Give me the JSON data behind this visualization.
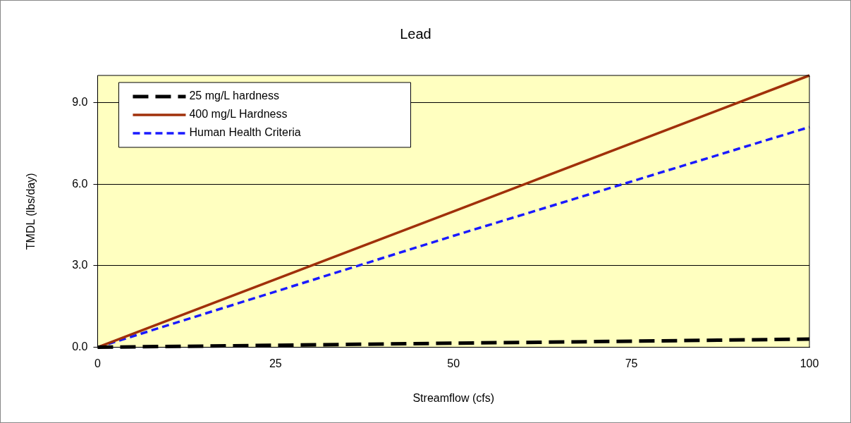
{
  "chart_data": {
    "type": "line",
    "title": "Lead",
    "xlabel": "Streamflow (cfs)",
    "ylabel": "TMDL (lbs/day)",
    "xlim": [
      0,
      100
    ],
    "xticks": [
      0,
      25,
      50,
      75,
      100
    ],
    "ylim": [
      0,
      10
    ],
    "yticks": [
      {
        "value": 0,
        "label": "0.0"
      },
      {
        "value": 3,
        "label": "3.0"
      },
      {
        "value": 6,
        "label": "6.0"
      },
      {
        "value": 9,
        "label": "9.0"
      }
    ],
    "grid": "y",
    "legend": "top left",
    "marker": "none",
    "series": [
      {
        "name": "25 mg/L hardness",
        "color": "#000000",
        "line_style": "dashed",
        "x": [
          0,
          50,
          100
        ],
        "values": [
          0,
          0.15,
          0.3
        ]
      },
      {
        "name": "400 mg/L Hardness",
        "color": "#a0300a",
        "line_style": "solid",
        "x": [
          0,
          50,
          100
        ],
        "values": [
          0,
          5,
          10
        ]
      },
      {
        "name": "Human Health Criteria",
        "color": "#1a1aff",
        "line_style": "dashed",
        "x": [
          0,
          50,
          100
        ],
        "values": [
          0,
          4.1,
          8.1
        ]
      }
    ]
  }
}
